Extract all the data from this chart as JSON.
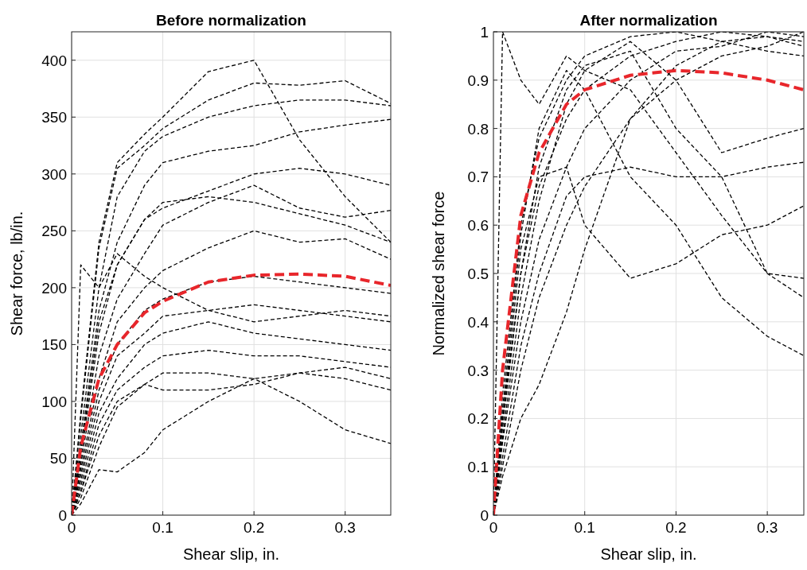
{
  "chart_data": [
    {
      "type": "line",
      "title": "Before normalization",
      "xlabel": "Shear slip, in.",
      "ylabel": "Shear force, lb/in.",
      "x": [
        0,
        0.01,
        0.03,
        0.05,
        0.08,
        0.1,
        0.15,
        0.2,
        0.25,
        0.3,
        0.35
      ],
      "xlim": [
        0,
        0.35
      ],
      "xticks": [
        0,
        0.1,
        0.2,
        0.3
      ],
      "ylim": [
        0,
        425
      ],
      "yticks": [
        0,
        50,
        100,
        150,
        200,
        250,
        300,
        350,
        400
      ],
      "grid": true,
      "line_style": "dashed",
      "series": [
        {
          "color": "#000000",
          "values": [
            0,
            90,
            240,
            310,
            335,
            350,
            390,
            400,
            330,
            280,
            240
          ]
        },
        {
          "color": "#000000",
          "values": [
            0,
            85,
            235,
            305,
            325,
            340,
            365,
            380,
            378,
            382,
            362
          ]
        },
        {
          "color": "#000000",
          "values": [
            0,
            70,
            200,
            280,
            320,
            333,
            350,
            360,
            365,
            365,
            360
          ]
        },
        {
          "color": "#000000",
          "values": [
            0,
            60,
            180,
            240,
            290,
            310,
            320,
            325,
            337,
            343,
            348
          ]
        },
        {
          "color": "#000000",
          "values": [
            0,
            50,
            160,
            220,
            260,
            270,
            285,
            300,
            305,
            300,
            290
          ]
        },
        {
          "color": "#000000",
          "values": [
            0,
            55,
            170,
            220,
            260,
            275,
            280,
            275,
            265,
            255,
            240
          ]
        },
        {
          "color": "#000000",
          "values": [
            0,
            45,
            140,
            190,
            230,
            255,
            275,
            290,
            270,
            262,
            268
          ]
        },
        {
          "color": "#000000",
          "values": [
            0,
            40,
            120,
            170,
            200,
            215,
            235,
            250,
            240,
            243,
            225
          ]
        },
        {
          "color": "#000000",
          "values": [
            0,
            35,
            110,
            150,
            180,
            190,
            205,
            210,
            205,
            200,
            195
          ]
        },
        {
          "color": "#000000",
          "values": [
            0,
            30,
            100,
            140,
            160,
            175,
            180,
            185,
            180,
            175,
            170
          ]
        },
        {
          "color": "#000000",
          "values": [
            0,
            25,
            90,
            120,
            150,
            160,
            170,
            160,
            155,
            150,
            145
          ]
        },
        {
          "color": "#000000",
          "values": [
            0,
            20,
            80,
            110,
            130,
            140,
            145,
            140,
            140,
            135,
            130
          ]
        },
        {
          "color": "#000000",
          "values": [
            0,
            15,
            60,
            95,
            115,
            125,
            125,
            120,
            125,
            120,
            110
          ]
        },
        {
          "color": "#000000",
          "values": [
            0,
            10,
            40,
            38,
            55,
            75,
            100,
            120,
            100,
            75,
            63
          ]
        },
        {
          "color": "#000000",
          "values": [
            0,
            220,
            200,
            230,
            210,
            200,
            180,
            170,
            175,
            180,
            175
          ]
        },
        {
          "color": "#000000",
          "values": [
            0,
            20,
            70,
            100,
            115,
            110,
            110,
            115,
            125,
            130,
            120
          ]
        },
        {
          "color": "#e8262b",
          "values": [
            0,
            60,
            120,
            150,
            178,
            188,
            205,
            211,
            212,
            210,
            202
          ]
        }
      ]
    },
    {
      "type": "line",
      "title": "After normalization",
      "xlabel": "Shear slip, in.",
      "ylabel": "Normalized shear force",
      "x": [
        0,
        0.01,
        0.03,
        0.05,
        0.08,
        0.1,
        0.15,
        0.2,
        0.25,
        0.3,
        0.34
      ],
      "xlim": [
        0,
        0.34
      ],
      "xticks": [
        0,
        0.1,
        0.2,
        0.3
      ],
      "ylim": [
        0,
        1
      ],
      "yticks": [
        0,
        0.1,
        0.2,
        0.3,
        0.4,
        0.5,
        0.6,
        0.7,
        0.8,
        0.9,
        1
      ],
      "grid": true,
      "line_style": "dashed",
      "series": [
        {
          "color": "#000000",
          "values": [
            0,
            0.25,
            0.6,
            0.78,
            0.9,
            0.95,
            0.99,
            1,
            0.98,
            0.99,
            0.98
          ]
        },
        {
          "color": "#000000",
          "values": [
            0,
            0.2,
            0.5,
            0.68,
            0.82,
            0.88,
            0.95,
            0.98,
            1,
            0.99,
            0.97
          ]
        },
        {
          "color": "#000000",
          "values": [
            0,
            0.15,
            0.4,
            0.57,
            0.72,
            0.8,
            0.9,
            0.96,
            0.97,
            1,
            0.99
          ]
        },
        {
          "color": "#000000",
          "values": [
            0,
            0.1,
            0.3,
            0.45,
            0.6,
            0.68,
            0.82,
            0.9,
            0.95,
            0.97,
            1
          ]
        },
        {
          "color": "#000000",
          "values": [
            0,
            0.08,
            0.2,
            0.27,
            0.42,
            0.55,
            0.82,
            0.93,
            0.98,
            0.96,
            0.95
          ]
        },
        {
          "color": "#000000",
          "values": [
            0,
            0.12,
            0.35,
            0.5,
            0.66,
            0.7,
            0.72,
            0.7,
            0.7,
            0.72,
            0.73
          ]
        },
        {
          "color": "#000000",
          "values": [
            0,
            1,
            0.9,
            0.85,
            0.95,
            0.92,
            0.88,
            0.75,
            0.62,
            0.5,
            0.45
          ]
        },
        {
          "color": "#000000",
          "values": [
            0,
            0.2,
            0.55,
            0.7,
            0.72,
            0.6,
            0.49,
            0.52,
            0.58,
            0.6,
            0.64
          ]
        },
        {
          "color": "#000000",
          "values": [
            0,
            0.22,
            0.58,
            0.8,
            0.92,
            0.88,
            0.7,
            0.6,
            0.45,
            0.37,
            0.33
          ]
        },
        {
          "color": "#000000",
          "values": [
            0,
            0.18,
            0.5,
            0.72,
            0.88,
            0.93,
            0.96,
            0.8,
            0.7,
            0.5,
            0.49
          ]
        },
        {
          "color": "#000000",
          "values": [
            0,
            0.16,
            0.45,
            0.65,
            0.85,
            0.92,
            0.98,
            0.9,
            0.75,
            0.78,
            0.8
          ]
        },
        {
          "color": "#e8262b",
          "values": [
            0,
            0.3,
            0.62,
            0.75,
            0.85,
            0.88,
            0.91,
            0.92,
            0.915,
            0.9,
            0.88
          ]
        }
      ]
    }
  ]
}
